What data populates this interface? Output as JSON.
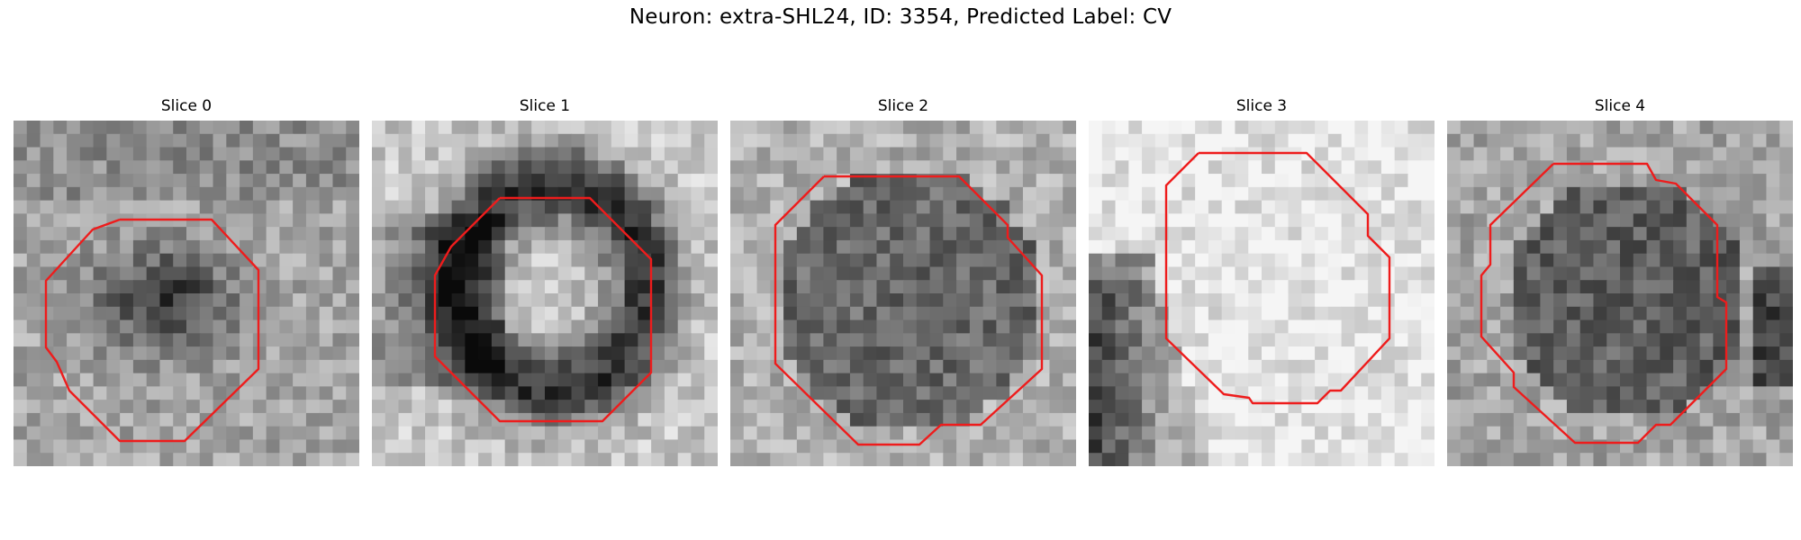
{
  "figure": {
    "title": "Neuron: extra-SHL24, ID: 3354, Predicted Label: CV"
  },
  "panels": [
    {
      "title": "Slice 0"
    },
    {
      "title": "Slice 1"
    },
    {
      "title": "Slice 2"
    },
    {
      "title": "Slice 3"
    },
    {
      "title": "Slice 4"
    }
  ],
  "contour_color": "#ee1c1c"
}
